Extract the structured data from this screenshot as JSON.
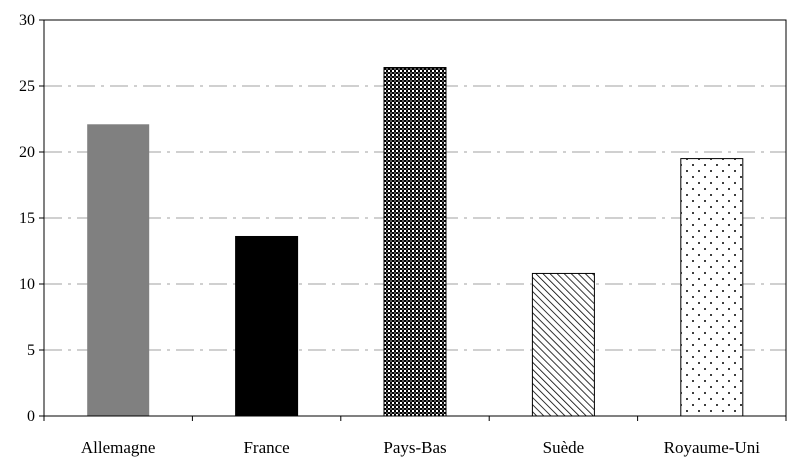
{
  "chart_data": {
    "type": "bar",
    "title": "",
    "xlabel": "",
    "ylabel": "",
    "categories": [
      "Allemagne",
      "France",
      "Pays-Bas",
      "Suède",
      "Royaume-Uni"
    ],
    "values": [
      22.1,
      13.6,
      26.4,
      10.8,
      19.5
    ],
    "ylim": [
      0,
      30
    ],
    "yticks": [
      0,
      5,
      10,
      15,
      20,
      25,
      30
    ],
    "grid": true,
    "legend": "none",
    "bar_fills": [
      "solid-gray",
      "solid-black",
      "checker-dark",
      "diagonal-hatch",
      "dots"
    ],
    "colors": {
      "gray": "#808080",
      "black": "#000000",
      "grid": "#a0a0a0",
      "background": "#ffffff"
    }
  }
}
